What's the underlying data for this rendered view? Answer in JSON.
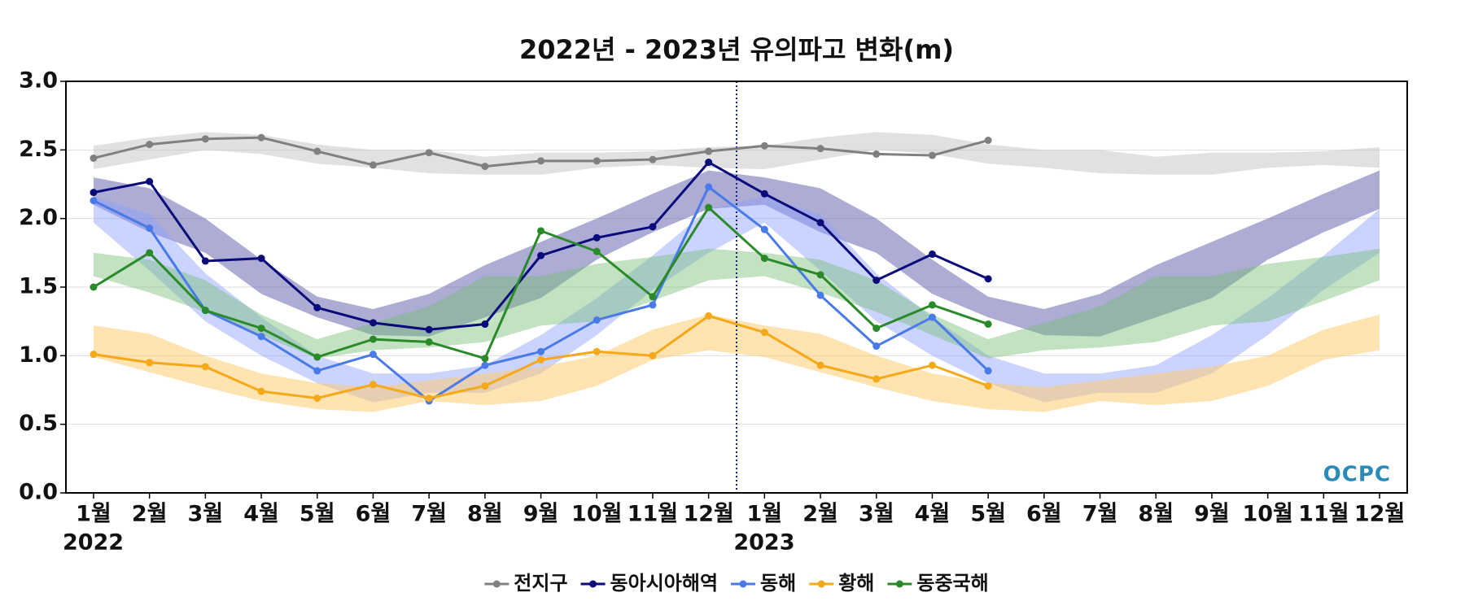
{
  "chart_data": {
    "type": "line",
    "title": "2022년 - 2023년 유의파고 변화(m)",
    "categories": [
      "1월",
      "2월",
      "3월",
      "4월",
      "5월",
      "6월",
      "7월",
      "8월",
      "9월",
      "10월",
      "11월",
      "12월",
      "1월",
      "2월",
      "3월",
      "4월",
      "5월",
      "6월",
      "7월",
      "8월",
      "9월",
      "10월",
      "11월",
      "12월"
    ],
    "years": [
      "2022",
      "2023"
    ],
    "ylim": [
      0,
      3
    ],
    "yticks": [
      {
        "value": 0,
        "label": "0.0"
      },
      0.5,
      {
        "value": 1,
        "label": "1.0"
      },
      1.5,
      {
        "value": 2,
        "label": "2.0"
      },
      2.5,
      {
        "value": 3,
        "label": "3.0"
      }
    ],
    "grid": true,
    "legend": "bottom",
    "logo": "OCPC",
    "series": [
      {
        "name": "전지구",
        "color": "#808080",
        "band_color": "rgba(195,195,195,0.5)",
        "values": [
          2.44,
          2.54,
          2.58,
          2.59,
          2.49,
          2.39,
          2.48,
          2.38,
          2.42,
          2.42,
          2.43,
          2.49,
          2.53,
          2.51,
          2.47,
          2.46,
          2.57,
          null,
          null,
          null,
          null,
          null,
          null,
          null
        ],
        "band_high": [
          2.53,
          2.59,
          2.63,
          2.61,
          2.54,
          2.5,
          2.5,
          2.45,
          2.48,
          2.48,
          2.49,
          2.52,
          2.53,
          2.59,
          2.63,
          2.61,
          2.54,
          2.5,
          2.5,
          2.45,
          2.48,
          2.48,
          2.49,
          2.52
        ],
        "band_low": [
          2.36,
          2.43,
          2.5,
          2.47,
          2.4,
          2.37,
          2.33,
          2.32,
          2.32,
          2.37,
          2.39,
          2.37,
          2.36,
          2.43,
          2.5,
          2.47,
          2.4,
          2.37,
          2.33,
          2.32,
          2.32,
          2.37,
          2.39,
          2.37
        ]
      },
      {
        "name": "동아시아해역",
        "color": "#0a0a7a",
        "band_color": "rgba(90,90,170,0.5)",
        "values": [
          2.19,
          2.27,
          1.69,
          1.71,
          1.35,
          1.24,
          1.19,
          1.23,
          1.73,
          1.86,
          1.94,
          2.41,
          2.18,
          1.97,
          1.55,
          1.74,
          1.56,
          null,
          null,
          null,
          null,
          null,
          null,
          null
        ],
        "band_high": [
          2.3,
          2.22,
          2.0,
          1.7,
          1.43,
          1.34,
          1.45,
          1.66,
          1.83,
          2.0,
          2.18,
          2.35,
          2.3,
          2.22,
          2.0,
          1.7,
          1.43,
          1.34,
          1.45,
          1.66,
          1.83,
          2.0,
          2.18,
          2.35
        ],
        "band_low": [
          2.1,
          1.9,
          1.75,
          1.45,
          1.28,
          1.15,
          1.14,
          1.28,
          1.42,
          1.7,
          1.9,
          2.07,
          2.1,
          1.9,
          1.75,
          1.45,
          1.28,
          1.15,
          1.14,
          1.28,
          1.42,
          1.7,
          1.9,
          2.07
        ]
      },
      {
        "name": "동해",
        "color": "#4a7ae8",
        "band_color": "rgba(140,160,255,0.45)",
        "values": [
          2.13,
          1.93,
          1.33,
          1.14,
          0.89,
          1.01,
          0.67,
          0.93,
          1.03,
          1.26,
          1.37,
          2.23,
          1.92,
          1.44,
          1.07,
          1.28,
          0.89,
          null,
          null,
          null,
          null,
          null,
          null,
          null
        ],
        "band_high": [
          2.16,
          2.03,
          1.6,
          1.28,
          1.0,
          0.87,
          0.87,
          0.93,
          1.15,
          1.42,
          1.73,
          2.07,
          2.16,
          2.03,
          1.6,
          1.28,
          1.0,
          0.87,
          0.87,
          0.93,
          1.15,
          1.42,
          1.73,
          2.07
        ],
        "band_low": [
          1.97,
          1.62,
          1.25,
          1.0,
          0.8,
          0.66,
          0.73,
          0.73,
          0.87,
          1.15,
          1.48,
          1.75,
          1.97,
          1.62,
          1.25,
          1.0,
          0.8,
          0.66,
          0.73,
          0.73,
          0.87,
          1.15,
          1.48,
          1.75
        ]
      },
      {
        "name": "황해",
        "color": "#f5a818",
        "band_color": "rgba(255,200,100,0.5)",
        "values": [
          1.01,
          0.95,
          0.92,
          0.74,
          0.69,
          0.79,
          0.69,
          0.78,
          0.97,
          1.03,
          1.0,
          1.29,
          1.17,
          0.93,
          0.83,
          0.93,
          0.78,
          null,
          null,
          null,
          null,
          null,
          null,
          null
        ],
        "band_high": [
          1.22,
          1.16,
          1.0,
          0.87,
          0.8,
          0.77,
          0.82,
          0.87,
          0.92,
          1.0,
          1.19,
          1.3,
          1.22,
          1.16,
          1.0,
          0.87,
          0.8,
          0.77,
          0.82,
          0.87,
          0.92,
          1.0,
          1.19,
          1.3
        ],
        "band_low": [
          0.99,
          0.88,
          0.77,
          0.67,
          0.61,
          0.59,
          0.67,
          0.64,
          0.67,
          0.78,
          0.97,
          1.04,
          0.99,
          0.88,
          0.77,
          0.67,
          0.61,
          0.59,
          0.67,
          0.64,
          0.67,
          0.78,
          0.97,
          1.04
        ]
      },
      {
        "name": "동중국해",
        "color": "#2a8a2a",
        "band_color": "rgba(120,190,120,0.45)",
        "values": [
          1.5,
          1.75,
          1.33,
          1.2,
          0.99,
          1.12,
          1.1,
          0.98,
          1.91,
          1.76,
          1.43,
          2.08,
          1.71,
          1.59,
          1.2,
          1.37,
          1.23,
          null,
          null,
          null,
          null,
          null,
          null,
          null
        ],
        "band_high": [
          1.75,
          1.7,
          1.55,
          1.3,
          1.12,
          1.24,
          1.36,
          1.58,
          1.58,
          1.67,
          1.72,
          1.78,
          1.75,
          1.7,
          1.55,
          1.3,
          1.12,
          1.24,
          1.36,
          1.58,
          1.58,
          1.67,
          1.72,
          1.78
        ],
        "band_low": [
          1.58,
          1.46,
          1.32,
          1.15,
          0.98,
          1.04,
          1.06,
          1.1,
          1.22,
          1.25,
          1.4,
          1.55,
          1.58,
          1.46,
          1.32,
          1.15,
          0.98,
          1.04,
          1.06,
          1.1,
          1.22,
          1.25,
          1.4,
          1.55
        ]
      }
    ]
  }
}
